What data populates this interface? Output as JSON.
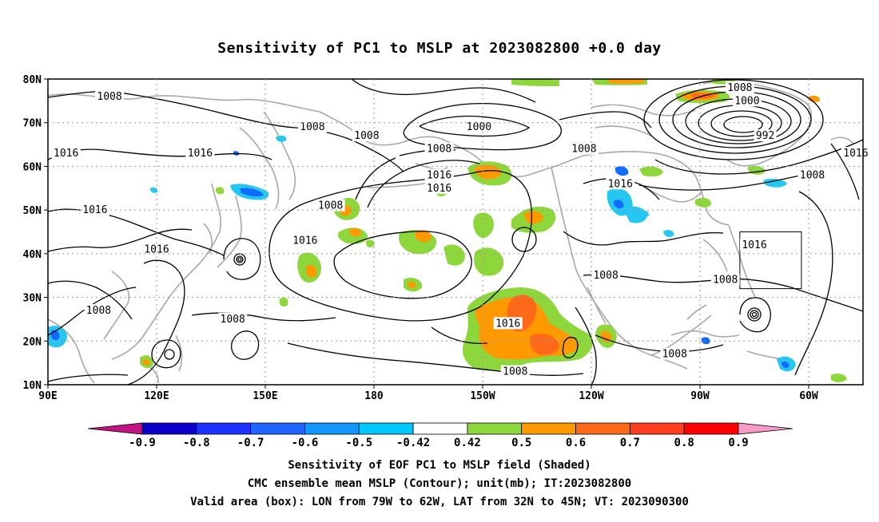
{
  "title": "Sensitivity of PC1 to MSLP at 2023082800 +0.0 day",
  "map": {
    "lon_labels": [
      "90E",
      "120E",
      "150E",
      "180",
      "150W",
      "120W",
      "90W",
      "60W"
    ],
    "lat_labels": [
      "80N",
      "70N",
      "60N",
      "50N",
      "40N",
      "30N",
      "20N",
      "10N"
    ],
    "contour_labels": [
      {
        "text": "1008",
        "lon": 107,
        "lat": 76
      },
      {
        "text": "1008",
        "lon": 163,
        "lat": 69
      },
      {
        "text": "1008",
        "lon": 178,
        "lat": 67
      },
      {
        "text": "1000",
        "lon": -151,
        "lat": 69
      },
      {
        "text": "1008",
        "lon": -162,
        "lat": 64
      },
      {
        "text": "1008",
        "lon": -122,
        "lat": 64
      },
      {
        "text": "1008",
        "lon": -79,
        "lat": 78
      },
      {
        "text": "1000",
        "lon": -77,
        "lat": 75
      },
      {
        "text": "992",
        "lon": -72,
        "lat": 67
      },
      {
        "text": "1016",
        "lon": -47,
        "lat": 63
      },
      {
        "text": "1008",
        "lon": -59,
        "lat": 58
      },
      {
        "text": "1016",
        "lon": 95,
        "lat": 63
      },
      {
        "text": "1016",
        "lon": 132,
        "lat": 63
      },
      {
        "text": "1016",
        "lon": -162,
        "lat": 58
      },
      {
        "text": "1016",
        "lon": -162,
        "lat": 55
      },
      {
        "text": "1016",
        "lon": -112,
        "lat": 56
      },
      {
        "text": "1016",
        "lon": 103,
        "lat": 50
      },
      {
        "text": "1008",
        "lon": 168,
        "lat": 51
      },
      {
        "text": "1016",
        "lon": 161,
        "lat": 43
      },
      {
        "text": "1016",
        "lon": 120,
        "lat": 41
      },
      {
        "text": "1016",
        "lon": -75,
        "lat": 42
      },
      {
        "text": "1008",
        "lon": -116,
        "lat": 35
      },
      {
        "text": "1008",
        "lon": -83,
        "lat": 34
      },
      {
        "text": "1008",
        "lon": 104,
        "lat": 27
      },
      {
        "text": "1008",
        "lon": 141,
        "lat": 25
      },
      {
        "text": "1016",
        "lon": -143,
        "lat": 24
      },
      {
        "text": "1008",
        "lon": -97,
        "lat": 17
      },
      {
        "text": "1008",
        "lon": -141,
        "lat": 13
      }
    ],
    "valid_box": {
      "lon_min": -79,
      "lon_max": -62,
      "lat_min": 32,
      "lat_max": 45
    },
    "shading_colors": {
      "green": "#8dd73c",
      "orange": "#ff9900",
      "dark_orange": "#ff6a1a",
      "cyan": "#26c6f2",
      "blue": "#0f6cff"
    }
  },
  "colorbar": {
    "labels": [
      "-0.9",
      "-0.8",
      "-0.7",
      "-0.6",
      "-0.5",
      "-0.42",
      "0.42",
      "0.5",
      "0.6",
      "0.7",
      "0.8",
      "0.9"
    ],
    "colors": [
      "#c21482",
      "#0a00c8",
      "#1e32ff",
      "#1e64ff",
      "#1496ff",
      "#00c8ff",
      "#ffffff",
      "#8dd73c",
      "#ff9900",
      "#ff6a1a",
      "#ff3d1f",
      "#ff0000",
      "#f79ac8"
    ]
  },
  "footer": {
    "line1": "Sensitivity of EOF PC1 to MSLP field (Shaded)",
    "line2": "CMC ensemble mean MSLP (Contour); unit(mb); IT:2023082800",
    "line3": "Valid area (box): LON from 79W to 62W, LAT from 32N to 45N; VT: 2023090300"
  }
}
